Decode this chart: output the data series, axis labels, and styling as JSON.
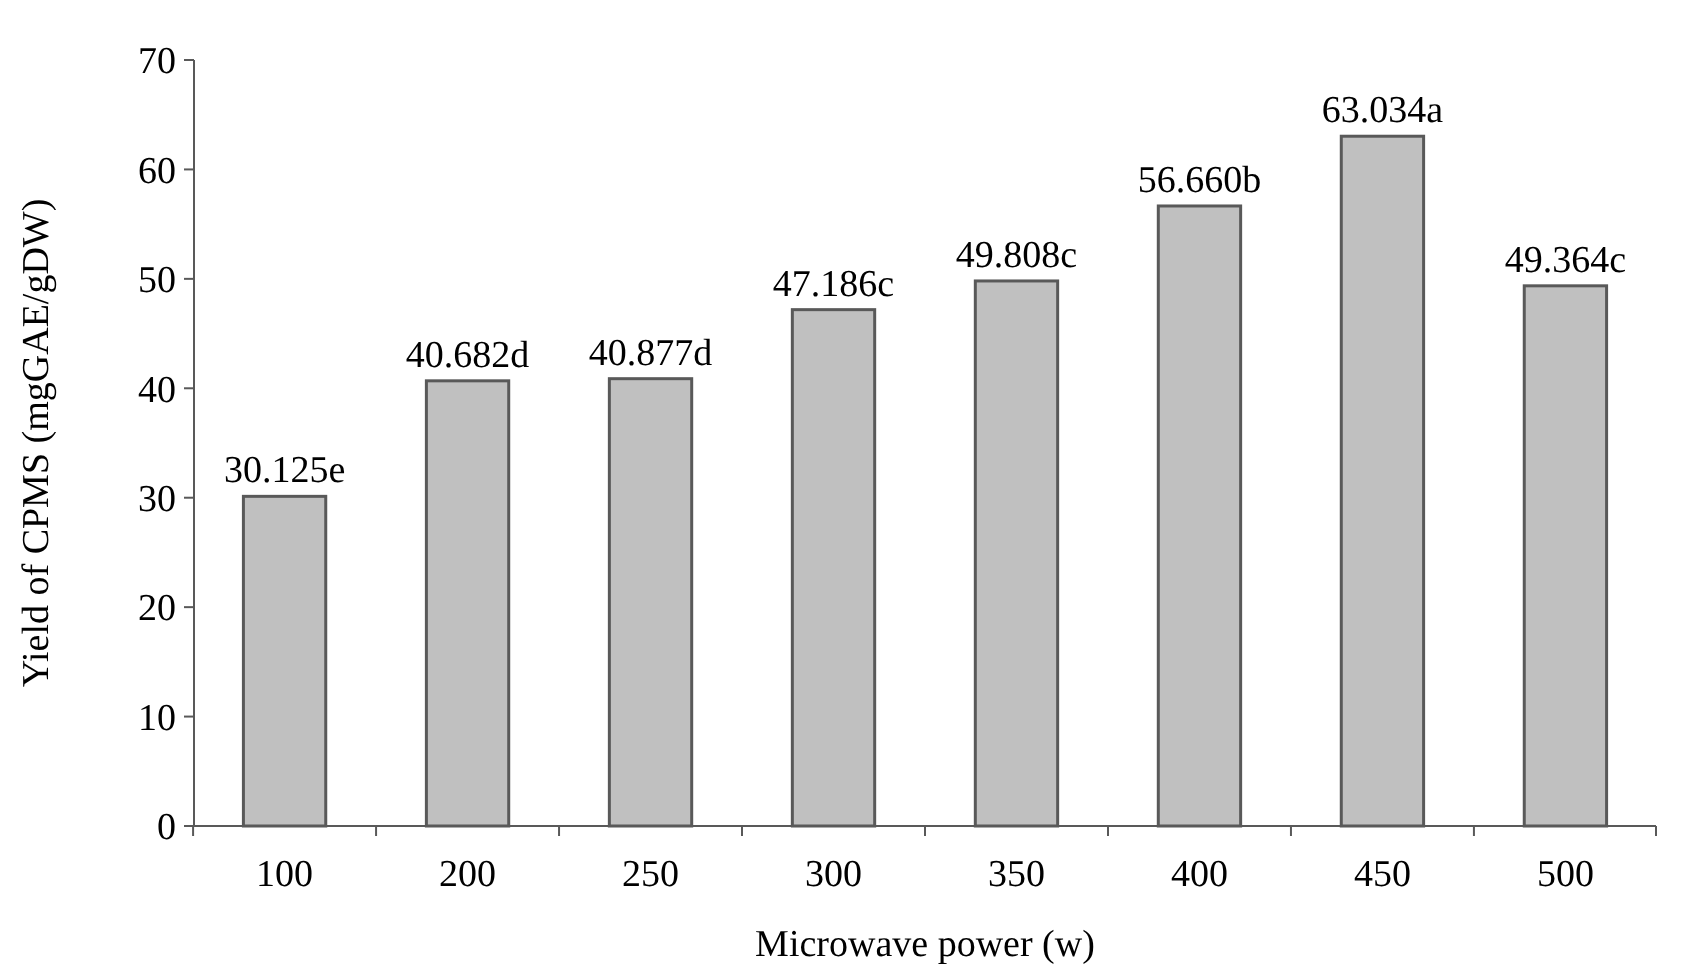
{
  "chart_data": {
    "type": "bar",
    "xlabel": "Microwave power (w)",
    "ylabel": "Yield of CPMS (mgGAE/gDW)",
    "categories": [
      "100",
      "200",
      "250",
      "300",
      "350",
      "400",
      "450",
      "500"
    ],
    "values": [
      30.125,
      40.682,
      40.877,
      47.186,
      49.808,
      56.66,
      63.034,
      49.364
    ],
    "value_labels": [
      "30.125e",
      "40.682d",
      "40.877d",
      "47.186c",
      "49.808c",
      "56.660b",
      "63.034a",
      "49.364c"
    ],
    "color": "#c0c0c0",
    "ylim": [
      0,
      70
    ],
    "yticks": [
      0,
      10,
      20,
      30,
      40,
      50,
      60,
      70
    ],
    "grid": false
  }
}
